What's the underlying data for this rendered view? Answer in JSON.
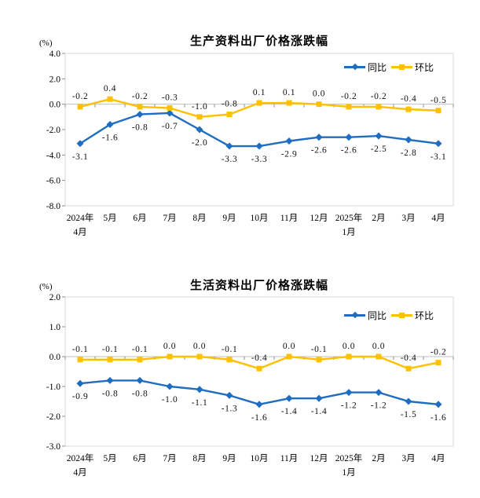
{
  "chart_data": [
    {
      "type": "line",
      "title": "生产资料出厂价格涨跌幅",
      "ylabel": "(%)",
      "xlabel": "",
      "ylim": [
        -8,
        4
      ],
      "ytick_step": 2,
      "grid": false,
      "legend_position": "top-right",
      "categories": [
        "2024年\n4月",
        "5月",
        "6月",
        "7月",
        "8月",
        "9月",
        "10月",
        "11月",
        "12月",
        "2025年\n1月",
        "2月",
        "3月",
        "4月"
      ],
      "series": [
        {
          "name": "同比",
          "color": "#1F6DC1",
          "marker": "diamond",
          "label_position": "below",
          "values": [
            -3.1,
            -1.6,
            -0.8,
            -0.7,
            -2.0,
            -3.3,
            -3.3,
            -2.9,
            -2.6,
            -2.6,
            -2.5,
            -2.8,
            -3.1
          ]
        },
        {
          "name": "环比",
          "color": "#FFC000",
          "marker": "square",
          "label_position": "above",
          "values": [
            -0.2,
            0.4,
            -0.2,
            -0.3,
            -1.0,
            -0.8,
            0.1,
            0.1,
            0.0,
            -0.2,
            -0.2,
            -0.4,
            -0.5
          ]
        }
      ]
    },
    {
      "type": "line",
      "title": "生活资料出厂价格涨跌幅",
      "ylabel": "(%)",
      "xlabel": "",
      "ylim": [
        -3,
        2
      ],
      "ytick_step": 1,
      "grid": false,
      "legend_position": "top-right",
      "categories": [
        "2024年\n4月",
        "5月",
        "6月",
        "7月",
        "8月",
        "9月",
        "10月",
        "11月",
        "12月",
        "2025年\n1月",
        "2月",
        "3月",
        "4月"
      ],
      "series": [
        {
          "name": "同比",
          "color": "#1F6DC1",
          "marker": "diamond",
          "label_position": "below",
          "values": [
            -0.9,
            -0.8,
            -0.8,
            -1.0,
            -1.1,
            -1.3,
            -1.6,
            -1.4,
            -1.4,
            -1.2,
            -1.2,
            -1.5,
            -1.6
          ]
        },
        {
          "name": "环比",
          "color": "#FFC000",
          "marker": "square",
          "label_position": "above",
          "values": [
            -0.1,
            -0.1,
            -0.1,
            0.0,
            0.0,
            -0.1,
            -0.4,
            0.0,
            -0.1,
            0.0,
            0.0,
            -0.4,
            -0.2
          ]
        }
      ]
    }
  ],
  "axis_colors": {
    "plot_border": "#d9d9d9",
    "zero_line": "#bfbfbf",
    "tick_mark": "#8c8c8c"
  }
}
